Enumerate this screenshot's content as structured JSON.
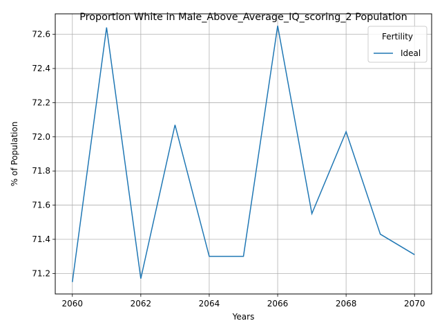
{
  "chart_data": {
    "type": "line",
    "title": "Proportion White in Male_Above_Average_IQ_scoring_2 Population",
    "xlabel": "Years",
    "ylabel": "% of Population",
    "x": [
      2060,
      2061,
      2062,
      2063,
      2064,
      2065,
      2066,
      2067,
      2068,
      2069,
      2070
    ],
    "series": [
      {
        "name": "Ideal",
        "color": "#1f77b4",
        "values": [
          71.15,
          72.64,
          71.17,
          72.07,
          71.3,
          71.3,
          72.65,
          71.55,
          72.03,
          71.43,
          71.31
        ]
      }
    ],
    "xlim": [
      2059.5,
      2070.5
    ],
    "ylim": [
      71.08,
      72.72
    ],
    "xticks": [
      2060,
      2062,
      2064,
      2066,
      2068,
      2070
    ],
    "yticks": [
      71.2,
      71.4,
      71.6,
      71.8,
      72.0,
      72.2,
      72.4,
      72.6
    ],
    "ytick_labels": [
      "71.2",
      "71.4",
      "71.6",
      "71.8",
      "72.0",
      "72.2",
      "72.4",
      "72.6"
    ],
    "grid": true,
    "legend": {
      "title": "Fertility",
      "placement": "top-right"
    }
  }
}
